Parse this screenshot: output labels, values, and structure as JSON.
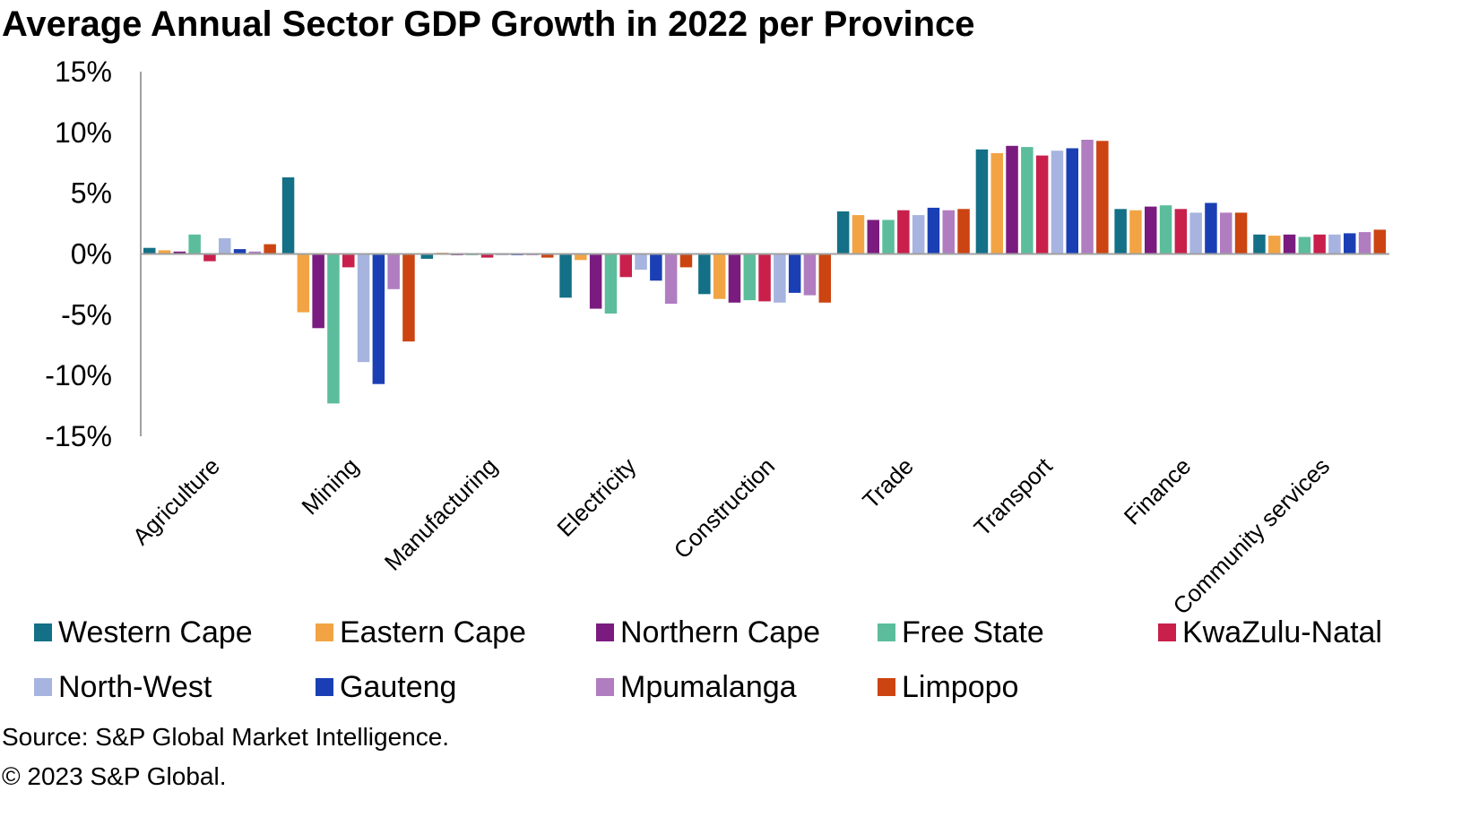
{
  "chart_data": {
    "type": "bar",
    "title": "Average Annual Sector GDP Growth in 2022 per Province",
    "xlabel": "",
    "ylabel": "",
    "ylim": [
      -15,
      15
    ],
    "yticks": [
      15,
      10,
      5,
      0,
      -5,
      -10,
      -15
    ],
    "ytick_labels": [
      "15%",
      "10%",
      "5%",
      "0%",
      "-5%",
      "-10%",
      "-15%"
    ],
    "grid": false,
    "legend_position": "bottom",
    "categories": [
      "Agriculture",
      "Mining",
      "Manufacturing",
      "Electricity",
      "Construction",
      "Trade",
      "Transport",
      "Finance",
      "Community services"
    ],
    "series": [
      {
        "name": "Western Cape",
        "color": "#137086",
        "values": [
          0.5,
          6.3,
          -0.4,
          -3.6,
          -3.3,
          3.5,
          8.6,
          3.7,
          1.6
        ]
      },
      {
        "name": "Eastern Cape",
        "color": "#F2A444",
        "values": [
          0.3,
          -4.8,
          0.1,
          -0.5,
          -3.7,
          3.2,
          8.3,
          3.6,
          1.5
        ]
      },
      {
        "name": "Northern Cape",
        "color": "#7A1C7F",
        "values": [
          0.2,
          -6.1,
          -0.1,
          -4.5,
          -4.0,
          2.8,
          8.9,
          3.9,
          1.6
        ]
      },
      {
        "name": "Free State",
        "color": "#5BBD9C",
        "values": [
          1.6,
          -12.3,
          -0.1,
          -4.9,
          -3.8,
          2.8,
          8.8,
          4.0,
          1.4
        ]
      },
      {
        "name": "KwaZulu-Natal",
        "color": "#C8204B",
        "values": [
          -0.6,
          -1.1,
          -0.3,
          -1.9,
          -3.9,
          3.6,
          8.1,
          3.7,
          1.6
        ]
      },
      {
        "name": "North-West",
        "color": "#A7B4E0",
        "values": [
          1.3,
          -8.9,
          -0.1,
          -1.3,
          -4.0,
          3.2,
          8.5,
          3.4,
          1.6
        ]
      },
      {
        "name": "Gauteng",
        "color": "#1A3FB5",
        "values": [
          0.4,
          -10.7,
          -0.1,
          -2.2,
          -3.2,
          3.8,
          8.7,
          4.2,
          1.7
        ]
      },
      {
        "name": "Mpumalanga",
        "color": "#B07DC0",
        "values": [
          0.2,
          -2.9,
          -0.1,
          -4.1,
          -3.4,
          3.6,
          9.4,
          3.4,
          1.8
        ]
      },
      {
        "name": "Limpopo",
        "color": "#CC4411",
        "values": [
          0.8,
          -7.2,
          -0.3,
          -1.1,
          -4.0,
          3.7,
          9.3,
          3.4,
          2.0
        ]
      }
    ]
  },
  "source_note": "Source: S&P Global Market Intelligence.",
  "copyright": "© 2023 S&P Global."
}
